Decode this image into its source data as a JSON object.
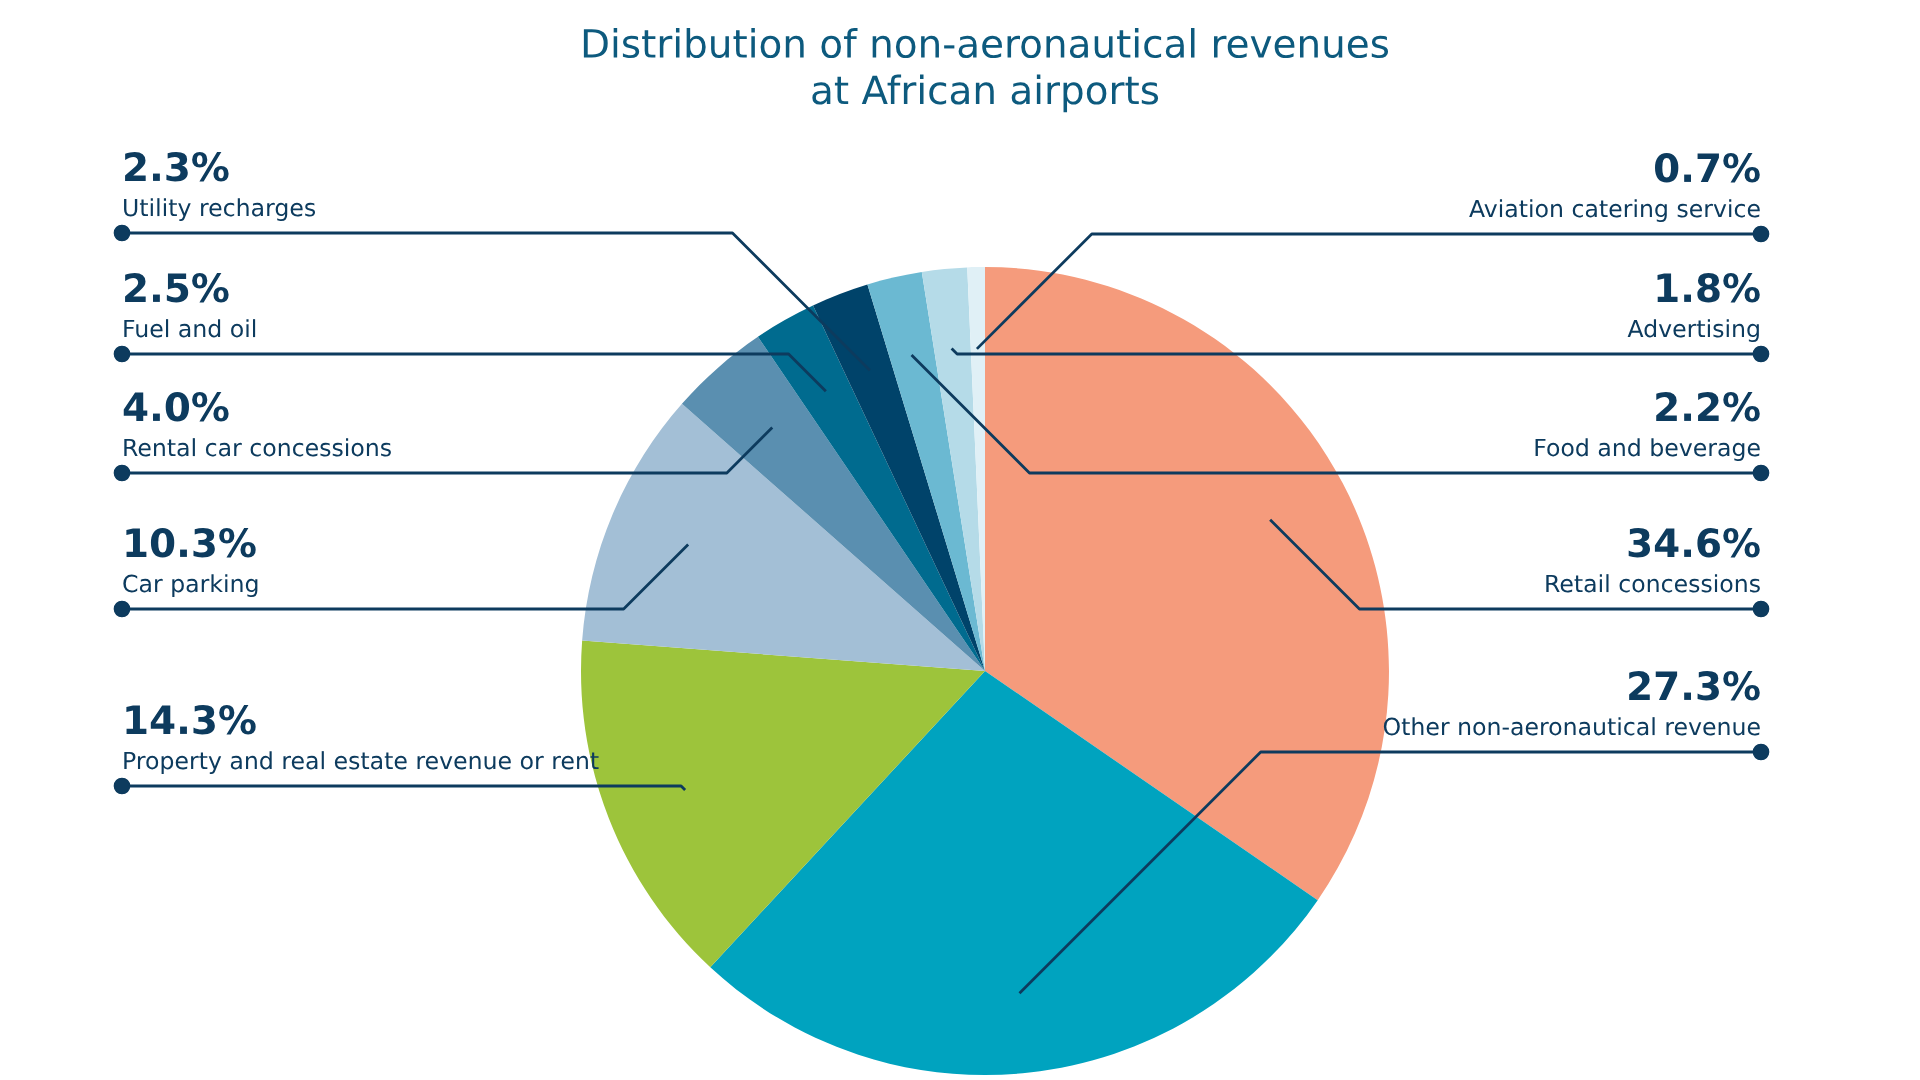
{
  "chart_data": {
    "type": "pie",
    "title": "Distribution of non-aeronautical revenues\nat African airports",
    "categories": [
      "Retail concessions",
      "Other non-aeronautical revenue",
      "Property and real estate revenue or rent",
      "Car parking",
      "Rental car concessions",
      "Fuel and oil",
      "Utility recharges",
      "Food and beverage",
      "Advertising",
      "Aviation catering service"
    ],
    "values": [
      34.6,
      27.3,
      14.3,
      10.3,
      4.0,
      2.5,
      2.3,
      2.2,
      1.8,
      0.7
    ],
    "value_labels": [
      "34.6%",
      "27.3%",
      "14.3%",
      "10.3%",
      "4.0%",
      "2.5%",
      "2.3%",
      "2.2%",
      "1.8%",
      "0.7%"
    ],
    "colors": [
      "#f59b7c",
      "#00a3bf",
      "#9dc43b",
      "#a3bfd6",
      "#5a8fb0",
      "#006b8f",
      "#00436a",
      "#6bb9d2",
      "#b5dbe8",
      "#e0f0f6"
    ],
    "legend": false
  }
}
